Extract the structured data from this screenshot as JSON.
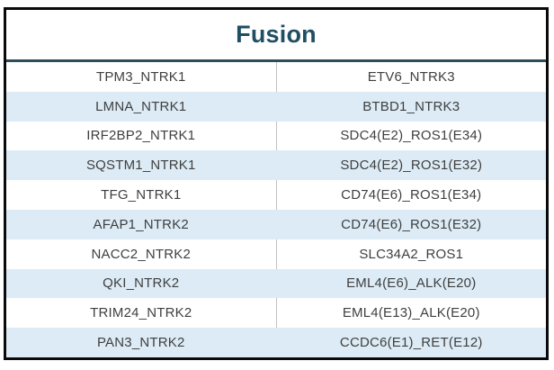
{
  "table": {
    "title": "Fusion",
    "columns": 2,
    "rows": [
      [
        "TPM3_NTRK1",
        "ETV6_NTRK3"
      ],
      [
        "LMNA_NTRK1",
        "BTBD1_NTRK3"
      ],
      [
        "IRF2BP2_NTRK1",
        "SDC4(E2)_ROS1(E34)"
      ],
      [
        "SQSTM1_NTRK1",
        "SDC4(E2)_ROS1(E32)"
      ],
      [
        "TFG_NTRK1",
        "CD74(E6)_ROS1(E34)"
      ],
      [
        "AFAP1_NTRK2",
        "CD74(E6)_ROS1(E32)"
      ],
      [
        "NACC2_NTRK2",
        "SLC34A2_ROS1"
      ],
      [
        "QKI_NTRK2",
        "EML4(E6)_ALK(E20)"
      ],
      [
        "TRIM24_NTRK2",
        "EML4(E13)_ALK(E20)"
      ],
      [
        "PAN3_NTRK2",
        "CCDC6(E1)_RET(E12)"
      ]
    ],
    "colors": {
      "title_text": "#204e63",
      "header_rule": "#2f4d5a",
      "outer_border": "#0a0a0a",
      "alt_row_bg": "#dcebf5",
      "cell_text": "#3f3f3f",
      "column_divider": "#c3c3c3"
    }
  }
}
